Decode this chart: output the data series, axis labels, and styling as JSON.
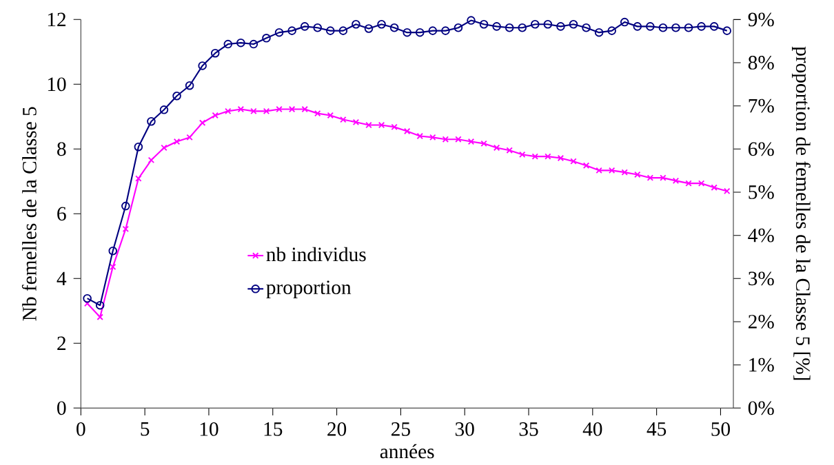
{
  "chart_data": {
    "type": "line",
    "xlabel": "années",
    "ylabel": "Nb femelles de la Classe 5",
    "y2label": "proportion de femelles de la Classe 5 [%]",
    "x": [
      0.5,
      1.5,
      2.5,
      3.5,
      4.5,
      5.5,
      6.5,
      7.5,
      8.5,
      9.5,
      10.5,
      11.5,
      12.5,
      13.5,
      14.5,
      15.5,
      16.5,
      17.5,
      18.5,
      19.5,
      20.5,
      21.5,
      22.5,
      23.5,
      24.5,
      25.5,
      26.5,
      27.5,
      28.5,
      29.5,
      30.5,
      31.5,
      32.5,
      33.5,
      34.5,
      35.5,
      36.5,
      37.5,
      38.5,
      39.5,
      40.5,
      41.5,
      42.5,
      43.5,
      44.5,
      45.5,
      46.5,
      47.5,
      48.5,
      49.5,
      50.5
    ],
    "series": [
      {
        "name": "nb individus",
        "color": "#ff00ff",
        "marker": "cross",
        "values": [
          3.23,
          2.81,
          4.36,
          5.53,
          7.09,
          7.66,
          8.04,
          8.23,
          8.36,
          8.81,
          9.04,
          9.17,
          9.23,
          9.17,
          9.17,
          9.23,
          9.23,
          9.23,
          9.1,
          9.04,
          8.91,
          8.83,
          8.74,
          8.74,
          8.68,
          8.55,
          8.4,
          8.36,
          8.3,
          8.3,
          8.23,
          8.17,
          8.04,
          7.96,
          7.83,
          7.77,
          7.77,
          7.72,
          7.62,
          7.49,
          7.34,
          7.34,
          7.28,
          7.21,
          7.11,
          7.11,
          7.02,
          6.94,
          6.94,
          6.81,
          6.7
        ]
      },
      {
        "name": "proportion",
        "color": "#000080",
        "marker": "circle",
        "axis": "y2",
        "values": [
          2.54,
          2.38,
          3.64,
          4.68,
          6.05,
          6.64,
          6.91,
          7.23,
          7.47,
          7.93,
          8.22,
          8.43,
          8.46,
          8.43,
          8.57,
          8.7,
          8.74,
          8.84,
          8.81,
          8.74,
          8.74,
          8.89,
          8.79,
          8.89,
          8.81,
          8.7,
          8.7,
          8.74,
          8.74,
          8.81,
          8.98,
          8.89,
          8.84,
          8.81,
          8.81,
          8.89,
          8.89,
          8.84,
          8.89,
          8.81,
          8.7,
          8.74,
          8.94,
          8.84,
          8.84,
          8.81,
          8.81,
          8.81,
          8.84,
          8.84,
          8.74
        ]
      }
    ],
    "xlim": [
      0,
      51
    ],
    "xticks": [
      0,
      5,
      10,
      15,
      20,
      25,
      30,
      35,
      40,
      45,
      50
    ],
    "ylim": [
      0,
      12
    ],
    "yticks": [
      0,
      2,
      4,
      6,
      8,
      10,
      12
    ],
    "y2lim": [
      0,
      9
    ],
    "y2ticks": [
      {
        "value": 0,
        "label": "0%"
      },
      {
        "value": 1,
        "label": "1%"
      },
      {
        "value": 2,
        "label": "2%"
      },
      {
        "value": 3,
        "label": "3%"
      },
      {
        "value": 4,
        "label": "4%"
      },
      {
        "value": 5,
        "label": "5%"
      },
      {
        "value": 6,
        "label": "6%"
      },
      {
        "value": 7,
        "label": "7%"
      },
      {
        "value": 8,
        "label": "8%"
      },
      {
        "value": 9,
        "label": "9%"
      }
    ],
    "legend": "left",
    "grid": false,
    "line_style": "solid"
  }
}
